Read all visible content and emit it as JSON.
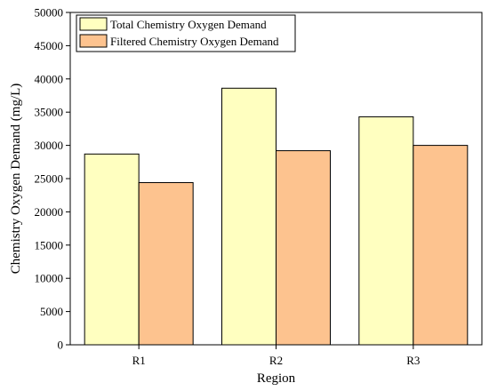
{
  "chart_data": {
    "type": "bar",
    "categories": [
      "R1",
      "R2",
      "R3"
    ],
    "series": [
      {
        "name": "Total Chemistry Oxygen Demand",
        "values": [
          28700,
          38600,
          34300
        ],
        "color": "#ffffc0"
      },
      {
        "name": "Filtered Chemistry Oxygen Demand",
        "values": [
          24400,
          29200,
          30000
        ],
        "color": "#fdc38f"
      }
    ],
    "xlabel": "Region",
    "ylabel": "Chemistry Oxygen Demand (mg/L)",
    "ylim": [
      0,
      50000
    ],
    "yticks": [
      "0",
      "5000",
      "10000",
      "15000",
      "20000",
      "25000",
      "30000",
      "35000",
      "40000",
      "45000",
      "50000"
    ],
    "grid": false,
    "legend_position": "top-left"
  }
}
